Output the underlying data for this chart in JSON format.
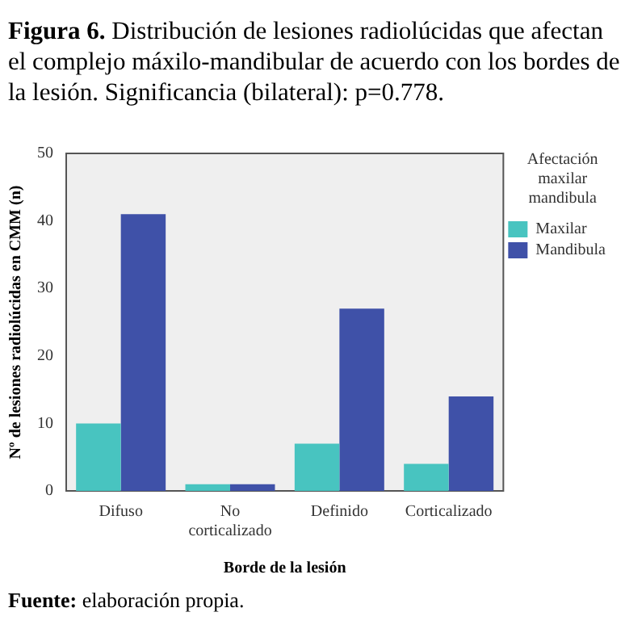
{
  "chart_data": {
    "type": "bar",
    "title": "Figura 6. Distribución de lesiones radiolúcidas que afectan el complejo máxilo-mandibular de acuerdo con los bordes de la lesión. Significancia (bilateral): p=0.778.",
    "categories": [
      "Difuso",
      "No corticalizado",
      "Definido",
      "Corticalizado"
    ],
    "series": [
      {
        "name": "Maxilar",
        "color": "#48c4c0",
        "values": [
          10,
          1,
          7,
          4
        ]
      },
      {
        "name": "Mandibula",
        "color": "#3f51a8",
        "values": [
          41,
          1,
          27,
          14
        ]
      }
    ],
    "ylim": [
      0,
      50
    ],
    "yticks": [
      0,
      10,
      20,
      30,
      40,
      50
    ],
    "xlabel": "Borde de la lesión",
    "ylabel": "Nº de lesiones radiolúcidas en CMM (n)",
    "legend": "right",
    "legend_title": "Afectación maxilar mandibula",
    "grid": false,
    "annotations": [
      "Fuente: elaboración propia."
    ]
  }
}
